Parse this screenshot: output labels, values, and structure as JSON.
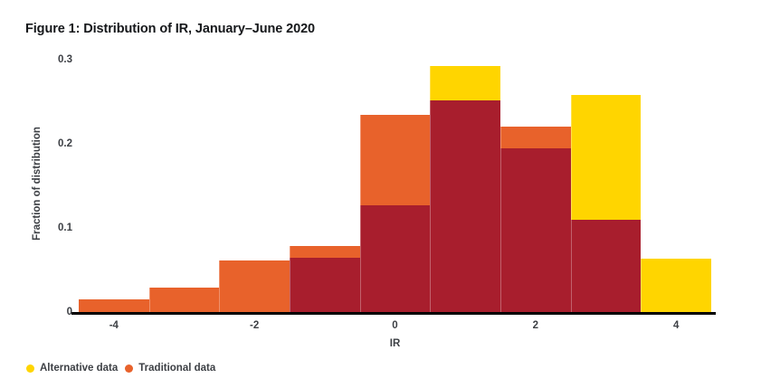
{
  "chart_data": {
    "type": "bar",
    "subtype": "overlaid-histogram",
    "title": "Figure 1: Distribution of IR, January–June 2020",
    "xlabel": "IR",
    "ylabel": "Fraction of distribution",
    "bin_centers": [
      -4,
      -3,
      -2,
      -1,
      0,
      1,
      2,
      3,
      4
    ],
    "bin_width": 1,
    "series": [
      {
        "name": "Alternative data",
        "color": "#FFD500",
        "values": [
          0,
          0,
          0,
          0.065,
          0.127,
          0.292,
          0.195,
          0.258,
          0.063
        ]
      },
      {
        "name": "Traditional data",
        "color": "#E8622B",
        "values": [
          0.015,
          0.029,
          0.061,
          0.078,
          0.235,
          0.252,
          0.22,
          0.11,
          0
        ]
      }
    ],
    "overlap_color": "#A81E2D",
    "axis_color": "#000000",
    "xticks": [
      -4,
      -2,
      0,
      2,
      4
    ],
    "yticks": [
      0,
      0.1,
      0.2,
      0.3
    ],
    "ytick_labels": [
      "0",
      "0.1",
      "0.2",
      "0.3"
    ],
    "xlim": [
      -4.5,
      4.5
    ],
    "ylim": [
      0,
      0.3065
    ],
    "grid": false,
    "legend_position": "bottom-left"
  }
}
